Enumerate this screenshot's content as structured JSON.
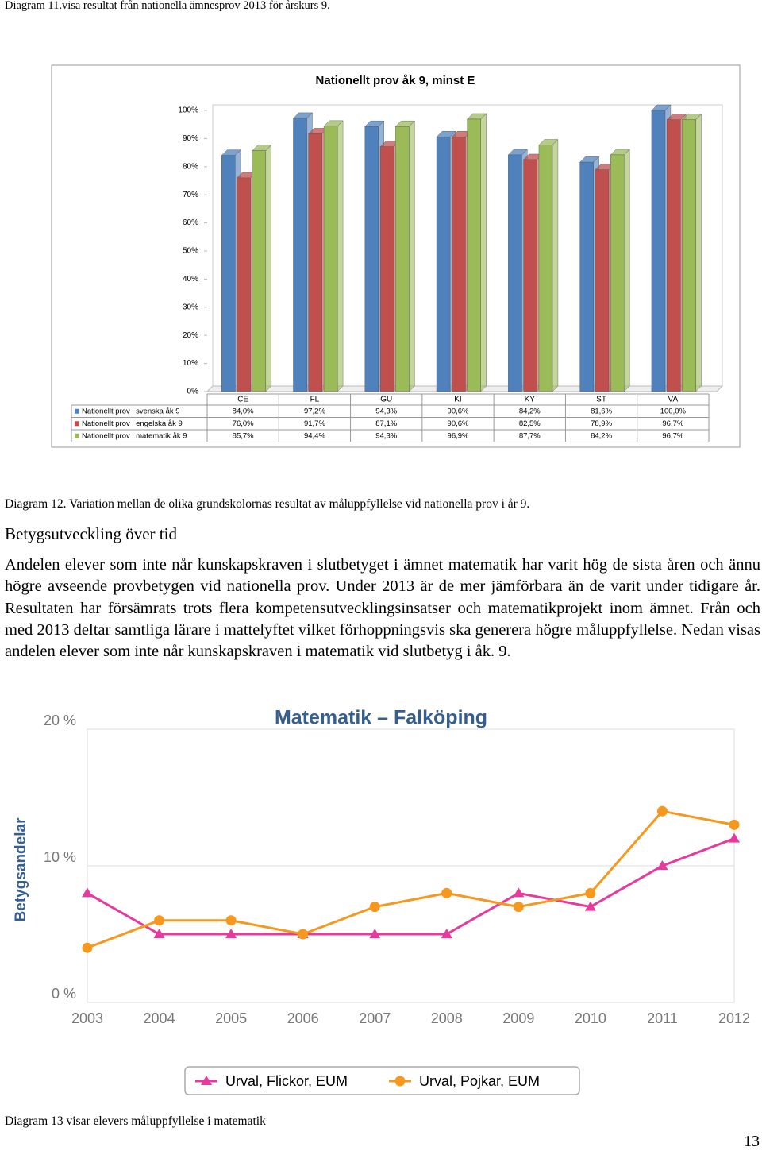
{
  "header": "Diagram 11.visa resultat från nationella ämnesprov 2013 för årskurs 9.",
  "chart_data": [
    {
      "type": "bar",
      "title": "Nationellt prov åk 9, minst E",
      "categories": [
        "CE",
        "FL",
        "GU",
        "KI",
        "KY",
        "ST",
        "VA"
      ],
      "series": [
        {
          "name": "Nationellt prov i svenska åk 9",
          "color": "#4f81bd",
          "values": [
            84.0,
            97.2,
            94.3,
            90.6,
            84.2,
            81.6,
            100.0
          ],
          "value_labels": [
            "84,0%",
            "97,2%",
            "94,3%",
            "90,6%",
            "84,2%",
            "81,6%",
            "100,0%"
          ]
        },
        {
          "name": "Nationellt prov i engelska åk 9",
          "color": "#c0504d",
          "values": [
            76.0,
            91.7,
            87.1,
            90.6,
            82.5,
            78.9,
            96.7
          ],
          "value_labels": [
            "76,0%",
            "91,7%",
            "87,1%",
            "90,6%",
            "82,5%",
            "78,9%",
            "96,7%"
          ]
        },
        {
          "name": "Nationellt prov i matematik åk 9",
          "color": "#9bbb59",
          "values": [
            85.7,
            94.4,
            94.3,
            96.9,
            87.7,
            84.2,
            96.7
          ],
          "value_labels": [
            "85,7%",
            "94,4%",
            "94,3%",
            "96,9%",
            "87,7%",
            "84,2%",
            "96,7%"
          ]
        }
      ],
      "ylim": [
        0,
        100
      ],
      "yticks": [
        {
          "value": 0,
          "label": "0%"
        },
        {
          "value": 10,
          "label": "10%"
        },
        {
          "value": 20,
          "label": "20%"
        },
        {
          "value": 30,
          "label": "30%"
        },
        {
          "value": 40,
          "label": "40%"
        },
        {
          "value": 50,
          "label": "50%"
        },
        {
          "value": 60,
          "label": "60%"
        },
        {
          "value": 70,
          "label": "70%"
        },
        {
          "value": 80,
          "label": "80%"
        },
        {
          "value": 90,
          "label": "90%"
        },
        {
          "value": 100,
          "label": "100%"
        }
      ],
      "grid": false
    },
    {
      "type": "line",
      "title": "Matematik – Falköping",
      "y_label": "Betygsandelar",
      "x": [
        2003,
        2004,
        2005,
        2006,
        2007,
        2008,
        2009,
        2010,
        2011,
        2012
      ],
      "xlim": [
        2003,
        2012
      ],
      "series": [
        {
          "name": "Urval, Flickor, EUM",
          "color": "#e8399e",
          "marker": "triangle",
          "values": [
            8,
            5,
            5,
            5,
            5,
            5,
            8,
            7,
            10,
            12
          ]
        },
        {
          "name": "Urval, Pojkar, EUM",
          "color": "#f5981d",
          "marker": "circle",
          "values": [
            4,
            6,
            6,
            5,
            7,
            8,
            7,
            8,
            14,
            13
          ]
        }
      ],
      "ylim": [
        0,
        20
      ],
      "yticks": [
        {
          "value": 0,
          "label": "0 %"
        },
        {
          "value": 10,
          "label": "10 %"
        },
        {
          "value": 20,
          "label": "20 %"
        }
      ],
      "grid": true
    }
  ],
  "caption_12": "Diagram 12. Variation mellan de olika grundskolornas resultat av måluppfyllelse vid nationella prov i år 9.",
  "heading": "Betygsutveckling över tid",
  "paragraph": "Andelen elever som inte når kunskapskraven i slutbetyget i ämnet matematik har varit hög de sista åren och ännu högre avseende provbetygen vid nationella prov. Under 2013 är de mer jämförbara än de varit under tidigare år. Resultaten har försämrats trots flera kompetensutvecklingsinsatser och matematikprojekt inom ämnet. Från och med 2013 deltar samtliga lärare i mattelyftet vilket förhoppningsvis ska generera högre måluppfyllelse. Nedan visas andelen elever som inte når kunskapskraven i matematik vid slutbetyg i åk. 9.",
  "caption_13": "Diagram 13 visar elevers måluppfyllelse i matematik",
  "page_number": "13"
}
